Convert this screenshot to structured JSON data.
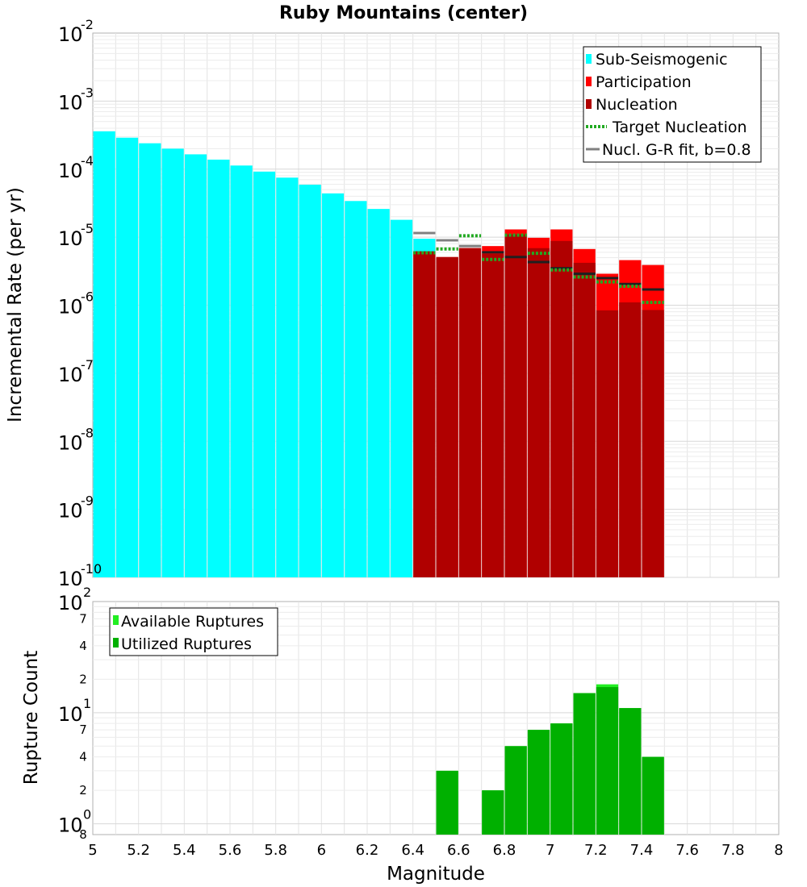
{
  "chart_data": [
    {
      "type": "bar",
      "title": "Ruby Mountains (center)",
      "xlabel": "",
      "ylabel": "Incremental Rate (per yr)",
      "yscale": "log",
      "xlim": [
        5,
        8
      ],
      "ylim": [
        1e-10,
        0.01
      ],
      "y_tick_labels": [
        {
          "base": "10",
          "exp": "-10"
        },
        {
          "base": "10",
          "exp": "-9"
        },
        {
          "base": "10",
          "exp": "-8"
        },
        {
          "base": "10",
          "exp": "-7"
        },
        {
          "base": "10",
          "exp": "-6"
        },
        {
          "base": "10",
          "exp": "-5"
        },
        {
          "base": "10",
          "exp": "-4"
        },
        {
          "base": "10",
          "exp": "-3"
        },
        {
          "base": "10",
          "exp": "-2"
        }
      ],
      "legend_position": "top-right",
      "legend": [
        "Sub-Seismogenic",
        "Participation",
        "Nucleation",
        "Target Nucleation",
        "Nucl. G-R fit, b=0.8"
      ],
      "colors": {
        "sub_seismogenic": "#00ffff",
        "participation": "#ff0000",
        "nucleation": "#b00000",
        "target_nucleation": "#22aa22",
        "gr_fit": "#808080",
        "gr_fit_over": "#202020"
      },
      "sub_seismogenic": {
        "x": [
          5.05,
          5.15,
          5.25,
          5.35,
          5.45,
          5.55,
          5.65,
          5.75,
          5.85,
          5.95,
          6.05,
          6.15,
          6.25,
          6.35,
          6.45
        ],
        "values": [
          0.00036,
          0.00029,
          0.00024,
          0.0002,
          0.000165,
          0.000138,
          0.000113,
          9.2e-05,
          7.5e-05,
          5.9e-05,
          4.4e-05,
          3.4e-05,
          2.6e-05,
          1.8e-05,
          9.5e-06
        ]
      },
      "participation": {
        "x": [
          6.45,
          6.55,
          6.65,
          6.75,
          6.85,
          6.95,
          7.05,
          7.15,
          7.25,
          7.35,
          7.45
        ],
        "values": [
          6.2e-06,
          5.1e-06,
          6.9e-06,
          7.4e-06,
          1.3e-05,
          9.8e-06,
          1.3e-05,
          6.7e-06,
          2.9e-06,
          4.6e-06,
          3.9e-06
        ]
      },
      "nucleation": {
        "x": [
          6.45,
          6.55,
          6.65,
          6.75,
          6.85,
          6.95,
          7.05,
          7.15,
          7.25,
          7.35,
          7.45
        ],
        "values": [
          6.2e-06,
          5.1e-06,
          6.9e-06,
          5.7e-06,
          1.1e-05,
          6.9e-06,
          8.8e-06,
          4.2e-06,
          8.4e-07,
          1.1e-06,
          8.5e-07
        ]
      },
      "target_nucleation": {
        "x": [
          6.45,
          6.55,
          6.65,
          6.75,
          6.85,
          6.95,
          7.05,
          7.15,
          7.25,
          7.35,
          7.45
        ],
        "values": [
          5.9e-06,
          6.7e-06,
          1.05e-05,
          4.7e-06,
          1.07e-05,
          5.8e-06,
          3.3e-06,
          2.6e-06,
          2.2e-06,
          1.9e-06,
          1.1e-06
        ]
      },
      "gr_fit": {
        "x": [
          6.45,
          6.55,
          6.65,
          6.75,
          6.85,
          6.95,
          7.05,
          7.15,
          7.25,
          7.35,
          7.45
        ],
        "values": [
          1.15e-05,
          9e-06,
          7.4e-06,
          6e-06,
          5.1e-06,
          4.3e-06,
          3.5e-06,
          2.9e-06,
          2.5e-06,
          2.05e-06,
          1.7e-06
        ]
      }
    },
    {
      "type": "bar",
      "title": "",
      "xlabel": "Magnitude",
      "ylabel": "Rupture Count",
      "yscale": "log",
      "xlim": [
        5,
        8
      ],
      "ylim": [
        0.8,
        100
      ],
      "x_tick_labels": [
        "5",
        "5.2",
        "5.4",
        "5.6",
        "5.8",
        "6",
        "6.2",
        "6.4",
        "6.6",
        "6.8",
        "7",
        "7.2",
        "7.4",
        "7.6",
        "7.8",
        "8"
      ],
      "y_tick_labels": [
        {
          "base": "10",
          "exp": "0"
        },
        {
          "base": "10",
          "exp": "1"
        },
        {
          "base": "10",
          "exp": "2"
        }
      ],
      "y_minor_tick_labels": [
        {
          "value": 0.8,
          "label": "8"
        },
        {
          "value": 2,
          "label": "2"
        },
        {
          "value": 4,
          "label": "4"
        },
        {
          "value": 7,
          "label": "7"
        },
        {
          "value": 20,
          "label": "2"
        },
        {
          "value": 40,
          "label": "4"
        },
        {
          "value": 70,
          "label": "7"
        }
      ],
      "legend_position": "top-left",
      "legend": [
        "Available Ruptures",
        "Utilized Ruptures"
      ],
      "colors": {
        "available": "#22ee22",
        "utilized": "#00b000"
      },
      "available": {
        "x": [
          6.55,
          6.75,
          6.85,
          6.95,
          7.05,
          7.15,
          7.25,
          7.35,
          7.45
        ],
        "values": [
          3,
          2,
          5,
          7,
          8,
          15,
          18,
          11,
          4
        ]
      },
      "utilized": {
        "x": [
          6.55,
          6.75,
          6.85,
          6.95,
          7.05,
          7.15,
          7.25,
          7.35,
          7.45
        ],
        "values": [
          3,
          2,
          5,
          7,
          8,
          15,
          17,
          11,
          4
        ]
      }
    }
  ]
}
